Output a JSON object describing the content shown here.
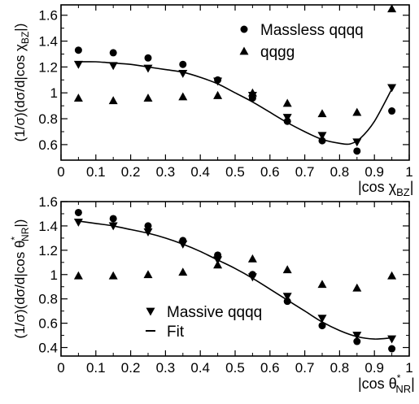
{
  "chart_data": [
    {
      "type": "scatter",
      "xlabel_main": "|cos χ",
      "xlabel_sub": "BZ",
      "xlabel_end": "|",
      "ylabel_main": "(1/σ)(dσ/d|cos χ",
      "ylabel_sub": "BZ",
      "ylabel_end": "|)",
      "xlim": [
        0,
        1
      ],
      "ylim": [
        0.48,
        1.68
      ],
      "xticks": [
        0,
        0.1,
        0.2,
        0.3,
        0.4,
        0.5,
        0.6,
        0.7,
        0.8,
        0.9,
        1
      ],
      "xtick_labels": [
        "0",
        "0.1",
        "0.2",
        "0.3",
        "0.4",
        "0.5",
        "0.6",
        "0.7",
        "0.8",
        "0.9",
        "1"
      ],
      "yticks": [
        0.6,
        0.8,
        1.0,
        1.2,
        1.4,
        1.6
      ],
      "ytick_labels": [
        "0.6",
        "0.8",
        "1",
        "1.2",
        "1.4",
        "1.6"
      ],
      "legend_position": "top-right",
      "series": [
        {
          "name": "Massless qqqq",
          "marker": "circle",
          "in_legend": true,
          "x": [
            0.05,
            0.15,
            0.25,
            0.35,
            0.45,
            0.55,
            0.65,
            0.75,
            0.85,
            0.95
          ],
          "y": [
            1.33,
            1.31,
            1.27,
            1.22,
            1.1,
            0.96,
            0.78,
            0.63,
            0.55,
            0.86
          ]
        },
        {
          "name": "qqgg",
          "marker": "triangle-up",
          "in_legend": true,
          "x": [
            0.05,
            0.15,
            0.25,
            0.35,
            0.45,
            0.55,
            0.65,
            0.75,
            0.85,
            0.95
          ],
          "y": [
            0.96,
            0.94,
            0.96,
            0.97,
            0.98,
            1.0,
            0.92,
            0.84,
            0.85,
            1.65
          ]
        },
        {
          "name": "Massive qqqq",
          "marker": "triangle-down",
          "in_legend": false,
          "x": [
            0.05,
            0.15,
            0.25,
            0.35,
            0.45,
            0.55,
            0.65,
            0.75,
            0.85,
            0.95
          ],
          "y": [
            1.22,
            1.21,
            1.19,
            1.15,
            1.09,
            0.98,
            0.81,
            0.67,
            0.62,
            1.04
          ]
        },
        {
          "name": "Fit",
          "marker": "line",
          "in_legend": false,
          "x": [
            0.05,
            0.1,
            0.15,
            0.2,
            0.25,
            0.3,
            0.35,
            0.4,
            0.45,
            0.5,
            0.55,
            0.6,
            0.65,
            0.7,
            0.75,
            0.8,
            0.83,
            0.86,
            0.9,
            0.95
          ],
          "y": [
            1.24,
            1.24,
            1.23,
            1.22,
            1.2,
            1.18,
            1.16,
            1.12,
            1.07,
            1.0,
            0.93,
            0.85,
            0.77,
            0.7,
            0.64,
            0.61,
            0.605,
            0.65,
            0.78,
            1.03
          ]
        }
      ]
    },
    {
      "type": "scatter",
      "xlabel_main": "|cos θ",
      "xlabel_sub": "NR",
      "xlabel_sup": "*",
      "xlabel_end": "|",
      "ylabel_main": "(1/σ)(dσ/d|cos θ",
      "ylabel_sub": "NR",
      "ylabel_sup": "*",
      "ylabel_end": "|)",
      "xlim": [
        0,
        1
      ],
      "ylim": [
        0.33,
        1.6
      ],
      "xticks": [
        0,
        0.1,
        0.2,
        0.3,
        0.4,
        0.5,
        0.6,
        0.7,
        0.8,
        0.9,
        1
      ],
      "xtick_labels": [
        "0",
        "0.1",
        "0.2",
        "0.3",
        "0.4",
        "0.5",
        "0.6",
        "0.7",
        "0.8",
        "0.9",
        "1"
      ],
      "yticks": [
        0.4,
        0.6,
        0.8,
        1.0,
        1.2,
        1.4,
        1.6
      ],
      "ytick_labels": [
        "0.4",
        "0.6",
        "0.8",
        "1",
        "1.2",
        "1.4",
        "1.6"
      ],
      "legend_position": "bottom-left",
      "series": [
        {
          "name": "Massless qqqq",
          "marker": "circle",
          "in_legend": false,
          "x": [
            0.05,
            0.15,
            0.25,
            0.35,
            0.45,
            0.55,
            0.65,
            0.75,
            0.85,
            0.95
          ],
          "y": [
            1.51,
            1.46,
            1.4,
            1.28,
            1.16,
            1.0,
            0.78,
            0.58,
            0.45,
            0.39
          ]
        },
        {
          "name": "qqgg",
          "marker": "triangle-up",
          "in_legend": false,
          "x": [
            0.05,
            0.15,
            0.25,
            0.35,
            0.45,
            0.55,
            0.65,
            0.75,
            0.85,
            0.95
          ],
          "y": [
            0.99,
            0.99,
            1.0,
            1.02,
            1.08,
            1.13,
            1.04,
            0.92,
            0.89,
            0.99
          ]
        },
        {
          "name": "Massive qqqq",
          "marker": "triangle-down",
          "in_legend": true,
          "x": [
            0.05,
            0.15,
            0.25,
            0.35,
            0.45,
            0.55,
            0.65,
            0.75,
            0.85,
            0.95
          ],
          "y": [
            1.43,
            1.4,
            1.35,
            1.25,
            1.12,
            0.98,
            0.82,
            0.64,
            0.5,
            0.47
          ]
        },
        {
          "name": "Fit",
          "marker": "line",
          "in_legend": true,
          "x": [
            0.05,
            0.1,
            0.15,
            0.2,
            0.25,
            0.3,
            0.35,
            0.4,
            0.45,
            0.5,
            0.55,
            0.6,
            0.65,
            0.7,
            0.75,
            0.8,
            0.85,
            0.9,
            0.95
          ],
          "y": [
            1.44,
            1.42,
            1.4,
            1.37,
            1.34,
            1.3,
            1.25,
            1.19,
            1.12,
            1.05,
            0.97,
            0.88,
            0.79,
            0.7,
            0.61,
            0.54,
            0.49,
            0.47,
            0.48
          ]
        }
      ]
    }
  ]
}
